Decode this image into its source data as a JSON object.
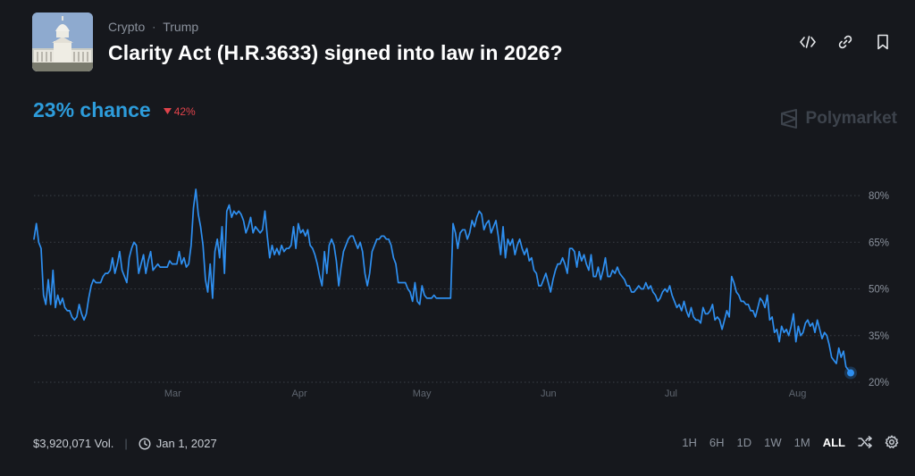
{
  "header": {
    "categories": [
      "Crypto",
      "Trump"
    ],
    "title": "Clarity Act (H.R.3633) signed into law in 2026?",
    "actions": [
      "embed-icon",
      "link-icon",
      "bookmark-icon"
    ]
  },
  "summary": {
    "chance": "23% chance",
    "delta": "42%",
    "delta_direction": "down"
  },
  "brand": {
    "name": "Polymarket"
  },
  "footer": {
    "volume": "$3,920,071 Vol.",
    "end_date": "Jan 1, 2027",
    "ranges": [
      "1H",
      "6H",
      "1D",
      "1W",
      "1M",
      "ALL"
    ],
    "active_range": "ALL"
  },
  "colors": {
    "accent": "#2d9cdb",
    "line": "#2e8ff0",
    "negative": "#e0434b",
    "background": "#16181d",
    "muted": "#8a919c"
  },
  "chart_data": {
    "type": "line",
    "xlabels": [
      "Mar",
      "Apr",
      "May",
      "Jun",
      "Jul",
      "Aug"
    ],
    "ytick_labels": [
      "20%",
      "35%",
      "50%",
      "65%",
      "80%"
    ],
    "ylim": [
      20,
      80
    ],
    "grid": true,
    "series": [
      {
        "values": [
          66,
          71,
          65,
          63,
          48,
          45,
          53,
          45,
          56,
          44,
          48,
          45,
          47,
          44,
          43,
          43,
          41,
          40,
          41,
          45,
          42,
          40,
          42,
          47,
          51,
          53,
          52,
          52,
          52,
          54,
          55,
          55,
          56,
          60,
          55,
          58,
          62,
          56,
          54,
          52,
          60,
          63,
          65,
          64,
          55,
          58,
          61,
          55,
          59,
          62,
          56,
          57,
          58,
          57,
          57,
          57,
          57,
          59,
          58,
          58,
          58,
          62,
          58,
          60,
          57,
          58,
          64,
          76,
          82,
          74,
          70,
          64,
          53,
          49,
          58,
          47,
          62,
          66,
          60,
          70,
          55,
          75,
          77,
          73,
          75,
          74,
          75,
          74,
          72,
          68,
          70,
          73,
          68,
          70,
          69,
          68,
          69,
          75,
          67,
          60,
          64,
          61,
          63,
          61,
          64,
          62,
          63,
          63,
          64,
          70,
          63,
          71,
          68,
          69,
          67,
          69,
          64,
          63,
          61,
          58,
          54,
          51,
          62,
          55,
          64,
          66,
          64,
          59,
          51,
          57,
          62,
          64,
          66,
          67,
          67,
          65,
          63,
          65,
          62,
          55,
          51,
          55,
          62,
          64,
          66,
          66,
          67,
          67,
          66,
          66,
          64,
          60,
          58,
          52,
          52,
          52,
          52,
          50,
          49,
          46,
          52,
          46,
          45,
          51,
          48,
          47,
          47,
          47,
          48,
          47,
          47,
          47,
          47,
          47,
          47,
          47,
          71,
          68,
          63,
          68,
          69,
          69,
          66,
          68,
          72,
          70,
          73,
          75,
          74,
          69,
          71,
          72,
          68,
          70,
          72,
          67,
          61,
          70,
          60,
          66,
          64,
          66,
          61,
          64,
          66,
          63,
          61,
          63,
          59,
          60,
          56,
          55,
          51,
          51,
          53,
          55,
          52,
          49,
          53,
          56,
          58,
          58,
          60,
          58,
          55,
          63,
          63,
          62,
          57,
          62,
          59,
          61,
          58,
          56,
          61,
          54,
          54,
          57,
          53,
          56,
          60,
          54,
          54,
          56,
          55,
          57,
          55,
          54,
          53,
          51,
          51,
          49,
          49,
          50,
          51,
          50,
          50,
          52,
          50,
          51,
          49,
          48,
          46,
          47,
          49,
          50,
          49,
          51,
          48,
          46,
          44,
          45,
          43,
          46,
          43,
          41,
          44,
          41,
          40,
          40,
          39,
          44,
          42,
          42,
          43,
          45,
          40,
          41,
          40,
          37,
          40,
          43,
          41,
          54,
          52,
          49,
          48,
          46,
          46,
          45,
          45,
          43,
          43,
          41,
          44,
          47,
          46,
          44,
          48,
          40,
          41,
          36,
          37,
          33,
          38,
          36,
          37,
          35,
          38,
          42,
          33,
          38,
          35,
          36,
          39,
          40,
          38,
          39,
          36,
          40,
          37,
          34,
          36,
          35,
          32,
          28,
          27,
          26,
          31,
          28,
          30,
          25,
          24,
          23
        ]
      }
    ],
    "last_value": 23
  }
}
